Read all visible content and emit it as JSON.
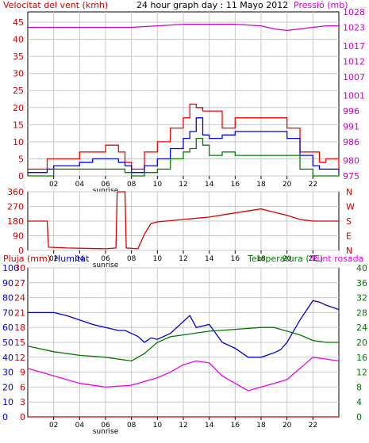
{
  "chart_data": [
    {
      "type": "line",
      "title": "24 hour graph day : 11 Mayo 2012",
      "ylabel": "Velocitat del vent (kmh)",
      "y2label": "Pressió (mb)",
      "yticks": [
        "0",
        "5",
        "10",
        "15",
        "20",
        "25",
        "30",
        "35",
        "40",
        "45"
      ],
      "y2ticks": [
        "975",
        "980",
        "986",
        "991",
        "996",
        "1001",
        "1007",
        "1012",
        "1017",
        "1023",
        "1028"
      ],
      "xticks": [
        "02",
        "04",
        "06",
        "08",
        "10",
        "12",
        "14",
        "16",
        "18",
        "20",
        "22"
      ],
      "ylim": [
        0,
        48
      ],
      "y2lim": [
        975,
        1028
      ],
      "annotation": "sunrise",
      "series": [
        {
          "color": "#ff0000",
          "x": [
            0,
            1,
            1.5,
            2,
            3,
            4,
            5,
            6,
            7,
            7.5,
            8,
            8.5,
            9,
            10,
            11,
            12,
            12.5,
            13,
            13.5,
            14,
            15,
            16,
            17,
            18,
            19,
            20,
            21,
            22,
            22.5,
            23,
            24
          ],
          "y": [
            2,
            2,
            5,
            5,
            5,
            7,
            7,
            9,
            7,
            4,
            2,
            2,
            7,
            10,
            14,
            17,
            21,
            20,
            19,
            19,
            14,
            17,
            17,
            17,
            17,
            14,
            7,
            7,
            4,
            5,
            2
          ]
        },
        {
          "color": "#0000ff",
          "x": [
            0,
            1,
            1.5,
            2,
            3,
            4,
            5,
            6,
            7,
            7.5,
            8,
            8.5,
            9,
            10,
            11,
            12,
            12.5,
            13,
            13.5,
            14,
            15,
            16,
            17,
            18,
            19,
            20,
            21,
            22,
            22.5,
            23,
            24
          ],
          "y": [
            1,
            1,
            2,
            3,
            3,
            4,
            5,
            5,
            4,
            3,
            1,
            1,
            3,
            5,
            8,
            11,
            13,
            17,
            12,
            11,
            12,
            13,
            13,
            13,
            13,
            11,
            6,
            3,
            2,
            2,
            1
          ]
        },
        {
          "color": "#008000",
          "x": [
            0,
            1,
            1.5,
            2,
            3,
            4,
            5,
            6,
            7,
            7.5,
            8,
            8.5,
            9,
            10,
            11,
            12,
            12.5,
            13,
            13.5,
            14,
            15,
            16,
            17,
            18,
            19,
            20,
            21,
            22,
            22.5,
            23,
            24
          ],
          "y": [
            0,
            0,
            0,
            2,
            2,
            2,
            2,
            2,
            2,
            1,
            0,
            0,
            1,
            2,
            5,
            7,
            8,
            11,
            9,
            6,
            7,
            6,
            6,
            6,
            6,
            6,
            2,
            0,
            0,
            0,
            0
          ]
        },
        {
          "color": "#cc00cc",
          "x": [
            0,
            2,
            4,
            6,
            8,
            10,
            12,
            14,
            16,
            18,
            19,
            20,
            21,
            22,
            23,
            24
          ],
          "y": [
            1023,
            1023,
            1023,
            1023,
            1023,
            1023.5,
            1024,
            1024,
            1024,
            1023.5,
            1022.5,
            1022,
            1022.5,
            1023,
            1023.5,
            1023.5
          ],
          "axis": "right"
        }
      ]
    },
    {
      "type": "line",
      "yticks": [
        "360",
        "270",
        "180",
        "90",
        "0"
      ],
      "y2ticks": [
        "N",
        "W",
        "S",
        "E",
        "N"
      ],
      "xticks": [
        "02",
        "04",
        "06",
        "08",
        "10",
        "12",
        "14",
        "16",
        "18",
        "20",
        "22"
      ],
      "ylim": [
        0,
        360
      ],
      "annotation": "sunrise",
      "series": [
        {
          "color": "#dd0000",
          "x": [
            0,
            1.5,
            1.6,
            3,
            6,
            6.8,
            6.9,
            7.5,
            7.6,
            8.5,
            9,
            9.5,
            10,
            12,
            14,
            16,
            18,
            19,
            20,
            21,
            22,
            24
          ],
          "y": [
            180,
            180,
            20,
            15,
            10,
            15,
            360,
            360,
            15,
            10,
            100,
            165,
            175,
            190,
            205,
            230,
            255,
            235,
            215,
            190,
            180,
            180
          ]
        }
      ]
    },
    {
      "type": "line",
      "title_left": "Pluja (mm)",
      "title_left2": "Humitat",
      "title_right": "Temperatura (°C)",
      "title_right2": "Punt rosada",
      "yticks_left1": [
        "0",
        "10",
        "20",
        "30",
        "40",
        "50",
        "60",
        "70",
        "80",
        "90",
        "100"
      ],
      "yticks_left2": [
        "0",
        "3",
        "6",
        "9",
        "12",
        "15",
        "18",
        "21",
        "24",
        "27",
        "30"
      ],
      "yticks_right": [
        "0",
        "4",
        "8",
        "12",
        "16",
        "20",
        "24",
        "28",
        "32",
        "36",
        "40"
      ],
      "xticks": [
        "02",
        "04",
        "06",
        "08",
        "10",
        "12",
        "14",
        "16",
        "18",
        "20",
        "22"
      ],
      "annotation": "sunrise",
      "series": [
        {
          "color": "#0000cc",
          "axis": "left1",
          "x": [
            0,
            2,
            3,
            4,
            5,
            6,
            7,
            7.5,
            8,
            8.5,
            9,
            9.5,
            10,
            11,
            12,
            12.5,
            13,
            14,
            15,
            16,
            17,
            18,
            19,
            19.5,
            20,
            21,
            22,
            22.5,
            23,
            24
          ],
          "y": [
            70,
            70,
            68,
            65,
            62,
            60,
            58,
            58,
            56,
            54,
            50,
            53,
            52,
            56,
            64,
            68,
            60,
            62,
            50,
            46,
            40,
            40,
            43,
            45,
            50,
            65,
            78,
            77,
            75,
            72
          ]
        },
        {
          "color": "#007700",
          "axis": "right",
          "x": [
            0,
            2,
            4,
            6,
            8,
            9,
            10,
            11,
            12,
            14,
            16,
            18,
            19,
            20,
            21,
            22,
            23,
            24
          ],
          "y": [
            19,
            17.5,
            16.5,
            16,
            15,
            17,
            20,
            21.5,
            22,
            23,
            23.5,
            24,
            24,
            23,
            22,
            20.5,
            20,
            20
          ]
        },
        {
          "color": "#ee00ee",
          "axis": "right",
          "x": [
            0,
            2,
            4,
            6,
            8,
            9,
            10,
            11,
            12,
            13,
            14,
            15,
            16,
            17,
            18,
            19,
            20,
            21,
            22,
            23,
            24
          ],
          "y": [
            13,
            11,
            9,
            8,
            8.5,
            9.5,
            10.5,
            12,
            14,
            15,
            14.5,
            11,
            9,
            7,
            8,
            9,
            10,
            13,
            16,
            15.5,
            15
          ]
        },
        {
          "color": "#cc0000",
          "axis": "left1",
          "x": [
            0,
            24
          ],
          "y": [
            0,
            0
          ]
        }
      ]
    }
  ]
}
